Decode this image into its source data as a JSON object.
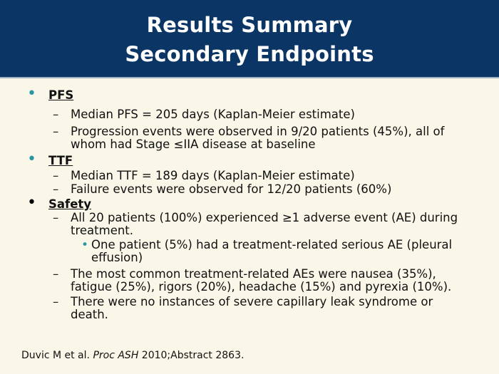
{
  "slide": {
    "title_line1": "Results Summary",
    "title_line2": "Secondary Endpoints",
    "colors": {
      "header_bg": "#0b3564",
      "body_bg": "#faf7e8",
      "accent_bullet": "#2a98a4"
    },
    "sections": {
      "pfs": {
        "heading": "PFS",
        "item1": "Median PFS = 205 days (Kaplan-Meier estimate)",
        "item2_line1": "Progression events were observed in 9/20 patients (45%), all of",
        "item2_line2": "whom had Stage ≤IIA disease at baseline"
      },
      "ttf": {
        "heading": "TTF",
        "item1": "Median TTF = 189 days (Kaplan-Meier estimate)",
        "item2": "Failure events were observed for 12/20 patients (60%)"
      },
      "safety": {
        "heading": "Safety",
        "item1_line1": "All 20 patients (100%) experienced ≥1 adverse event (AE) during",
        "item1_line2": "treatment.",
        "sub1_line1": "One patient (5%) had a treatment-related serious AE (pleural",
        "sub1_line2": "effusion)",
        "item2_line1": "The most common treatment-related AEs were nausea (35%),",
        "item2_line2": "fatigue (25%), rigors (20%), headache (15%) and pyrexia (10%).",
        "item3_line1": "There were no instances of severe capillary leak syndrome or",
        "item3_line2": "death."
      }
    },
    "footer": {
      "authors": "Duvic M et al.",
      "journal": "Proc ASH",
      "rest": "2010;Abstract 2863."
    },
    "glyphs": {
      "bullet": "•",
      "dash": "–"
    }
  }
}
